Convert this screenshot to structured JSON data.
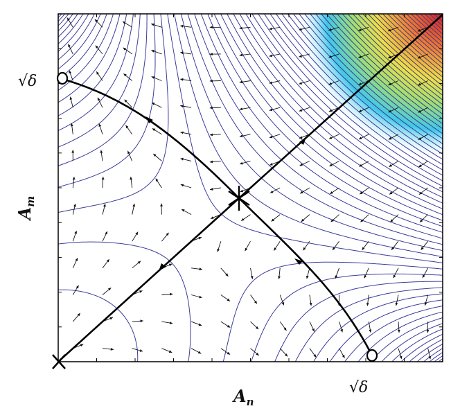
{
  "axes": {
    "x_label": "A",
    "x_label_sub": "n",
    "y_label": "A",
    "y_label_sub": "m",
    "x_tick_label": "√δ",
    "y_tick_label": "√δ"
  },
  "colors": {
    "contour": "#3a3a9c",
    "manifold": "#000000",
    "arrow": "#111111",
    "heat_high": "#e03020",
    "heat_mid": "#f0e040",
    "heat_low": "#40c0e0"
  },
  "markers": {
    "origin": "cross",
    "center": "star",
    "fixed_points": "circle"
  }
}
